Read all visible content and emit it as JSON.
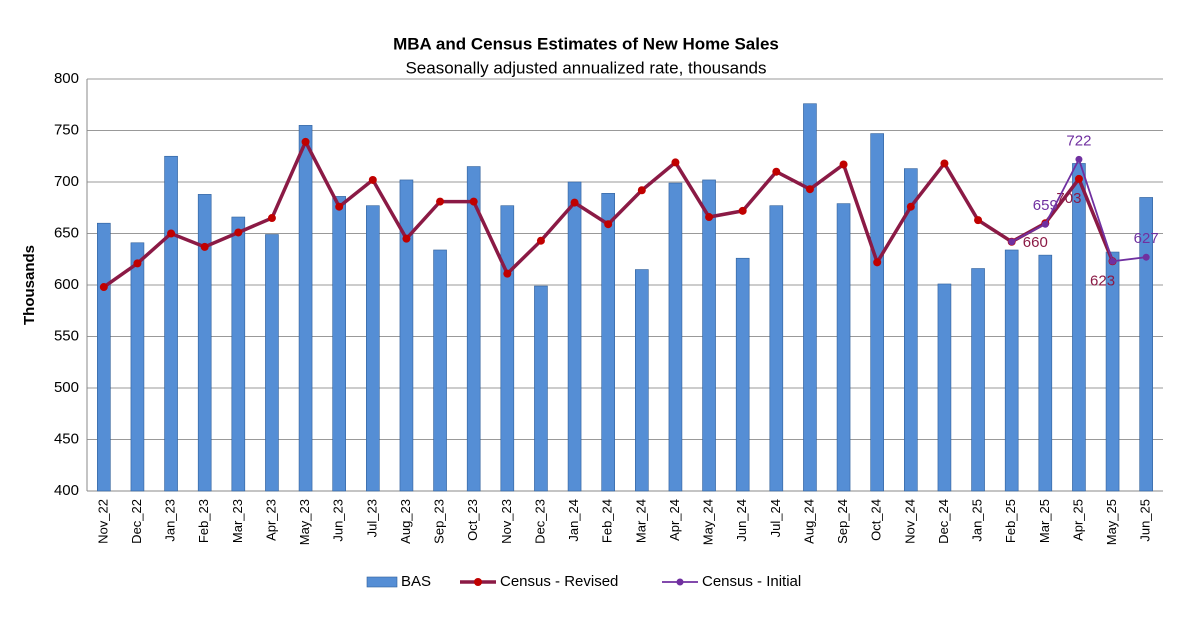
{
  "chart_data": {
    "type": "bar_line",
    "title": "MBA and Census Estimates of New Home Sales",
    "subtitle": "Seasonally adjusted annualized  rate, thousands",
    "y_label": "Thousands",
    "categories": [
      "Nov_22",
      "Dec_22",
      "Jan_23",
      "Feb_23",
      "Mar_23",
      "Apr_23",
      "May_23",
      "Jun_23",
      "Jul_23",
      "Aug_23",
      "Sep_23",
      "Oct_23",
      "Nov_23",
      "Dec_23",
      "Jan_24",
      "Feb_24",
      "Mar_24",
      "Apr_24",
      "May_24",
      "Jun_24",
      "Jul_24",
      "Aug_24",
      "Sep_24",
      "Oct_24",
      "Nov_24",
      "Dec_24",
      "Jan_25",
      "Feb_25",
      "Mar_25",
      "Apr_25",
      "May_25",
      "Jun_25"
    ],
    "series": [
      {
        "name": "BAS",
        "kind": "bar",
        "color": "#558ed5",
        "values": [
          660,
          641,
          725,
          688,
          666,
          649,
          755,
          686,
          677,
          702,
          634,
          715,
          677,
          599,
          700,
          689,
          615,
          699,
          702,
          626,
          677,
          776,
          679,
          747,
          713,
          601,
          616,
          634,
          629,
          718,
          632,
          685
        ]
      },
      {
        "name": "Census - Revised",
        "kind": "line",
        "color": "#8b1a45",
        "marker_color": "#c00000",
        "values": [
          598,
          621,
          650,
          637,
          651,
          665,
          739,
          676,
          702,
          645,
          681,
          681,
          611,
          643,
          680,
          659,
          692,
          719,
          666,
          672,
          710,
          693,
          717,
          622,
          676,
          718,
          663,
          642,
          660,
          703,
          623,
          null
        ],
        "value_labels": [
          null,
          null,
          null,
          null,
          null,
          null,
          null,
          null,
          null,
          null,
          null,
          null,
          null,
          null,
          null,
          null,
          null,
          null,
          null,
          null,
          null,
          null,
          null,
          null,
          null,
          null,
          null,
          null,
          "660",
          "703",
          "623",
          null
        ]
      },
      {
        "name": "Census - Initial",
        "kind": "line",
        "color": "#7030a0",
        "marker_color": "#7030a0",
        "values": [
          null,
          null,
          null,
          null,
          null,
          null,
          null,
          null,
          null,
          null,
          null,
          null,
          null,
          null,
          null,
          null,
          null,
          null,
          null,
          null,
          null,
          null,
          null,
          null,
          null,
          null,
          null,
          642,
          659,
          722,
          623,
          627
        ],
        "value_labels": [
          null,
          null,
          null,
          null,
          null,
          null,
          null,
          null,
          null,
          null,
          null,
          null,
          null,
          null,
          null,
          null,
          null,
          null,
          null,
          null,
          null,
          null,
          null,
          null,
          null,
          null,
          null,
          null,
          "659",
          "722",
          null,
          "627"
        ]
      }
    ],
    "ylim": [
      400,
      800
    ],
    "yticks": [
      400,
      450,
      500,
      550,
      600,
      650,
      700,
      750,
      800
    ],
    "grid": true,
    "legend": "bottom"
  }
}
